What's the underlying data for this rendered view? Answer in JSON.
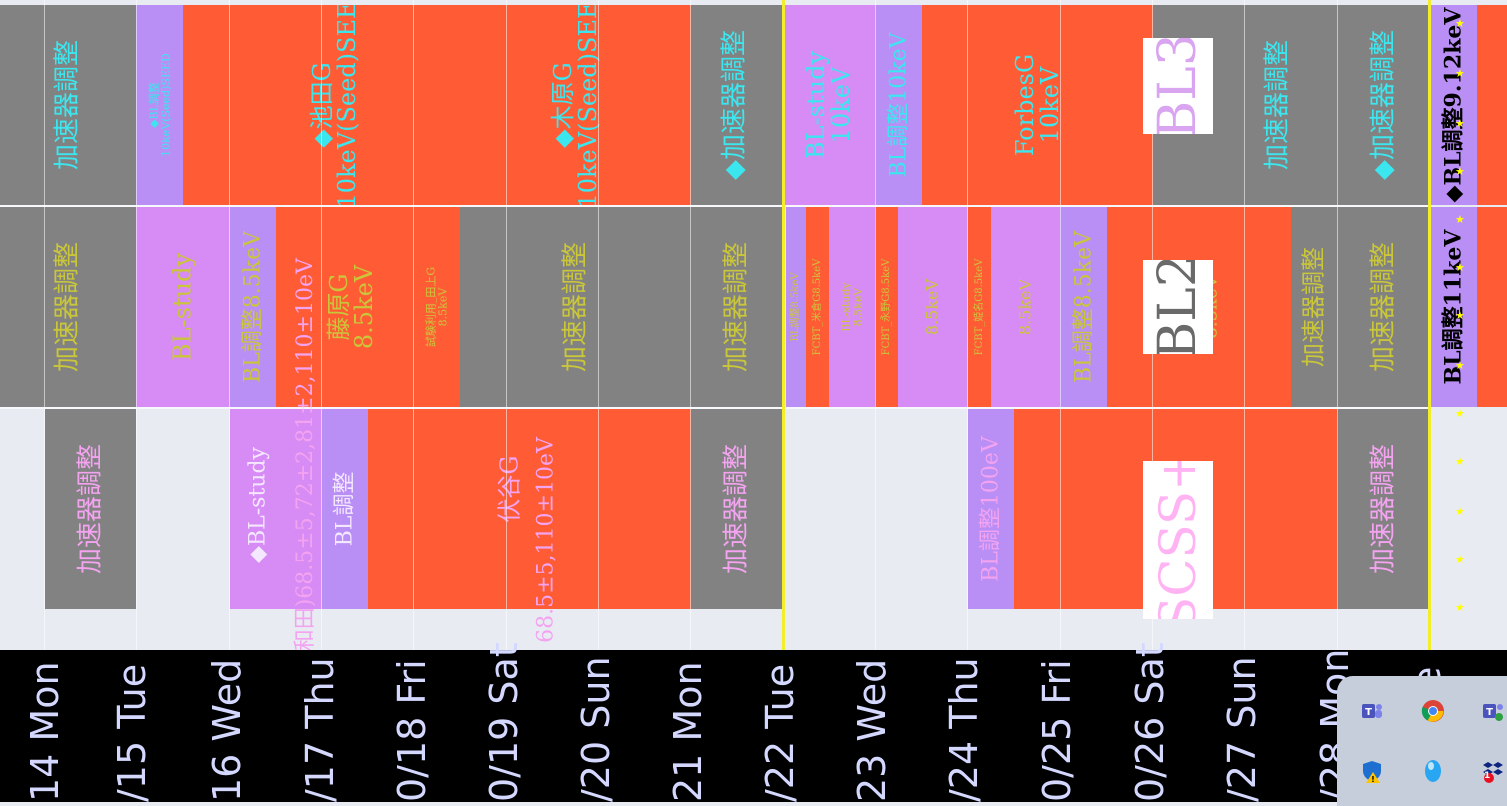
{
  "rows": {
    "bl3": {
      "label": "BL3",
      "cells": [
        "加速器調整",
        "◆BL調整\n10keV(Seed)SEED",
        "◆池田G\n10keV(Seed)SEE",
        "◆木原G\n10keV(Seed)SEE",
        "◆加速器調整",
        "BL-study\n10keV",
        "BL調整10keV",
        "ForbesG\n10keV",
        "加速器調整",
        "◆加速器調整",
        "◆BL調整9.12keV"
      ]
    },
    "bl2": {
      "label": "BL2",
      "cells": [
        "加速器調整",
        "BL-study",
        "BL調整8.5keV",
        "藤原G\n8.5keV",
        "試験利用_田上G\n8.5keV",
        "加速器調整",
        "加速器調整",
        "BL調整8.5keV",
        "FCBT_米倉G8.5keV",
        "BL-study\n8.5keV",
        "FCBT_永野G8.5keV",
        "8.5keV",
        "FCBT_姫名G8.5keV",
        "8.5keV",
        "BL調整8.5keV",
        "8.5keV",
        "加速器調整",
        "加速器調整",
        "BL調整11keV"
      ]
    },
    "scss": {
      "label": "SCSS+",
      "cells": [
        "加速器調整",
        "◆BL-study",
        "(大和田)68.5±5,72±2,81±2,110±10eV",
        "BL調整",
        "伏谷G",
        "68.5±5,110±10eV",
        "加速器調整",
        "BL調整100eV",
        "加速器調整"
      ]
    }
  },
  "dates": [
    "14 Mon",
    "/15 Tue",
    "16 Wed",
    "/17 Thu",
    "0/18 Fri",
    "0/19 Sat",
    "/20 Sun",
    "21 Mon",
    "/22 Tue",
    "23 Wed",
    "/24 Thu",
    "0/25 Fri",
    "0/26 Sat",
    "/27 Sun",
    "/28 Mon",
    "e"
  ],
  "taskbar": {
    "icons": [
      "teams-icon",
      "chrome-icon",
      "teams-alt-icon",
      "defender-icon",
      "blue-orb-icon",
      "dropbox-icon"
    ],
    "dropbox_badge": "1"
  },
  "colors": {
    "machine_tuning": "#828282",
    "user_run": "#ff5c35",
    "bl_study": "#d78bf5",
    "bl_tuning": "#b98ef5",
    "today_line": "#f2ee2a"
  }
}
